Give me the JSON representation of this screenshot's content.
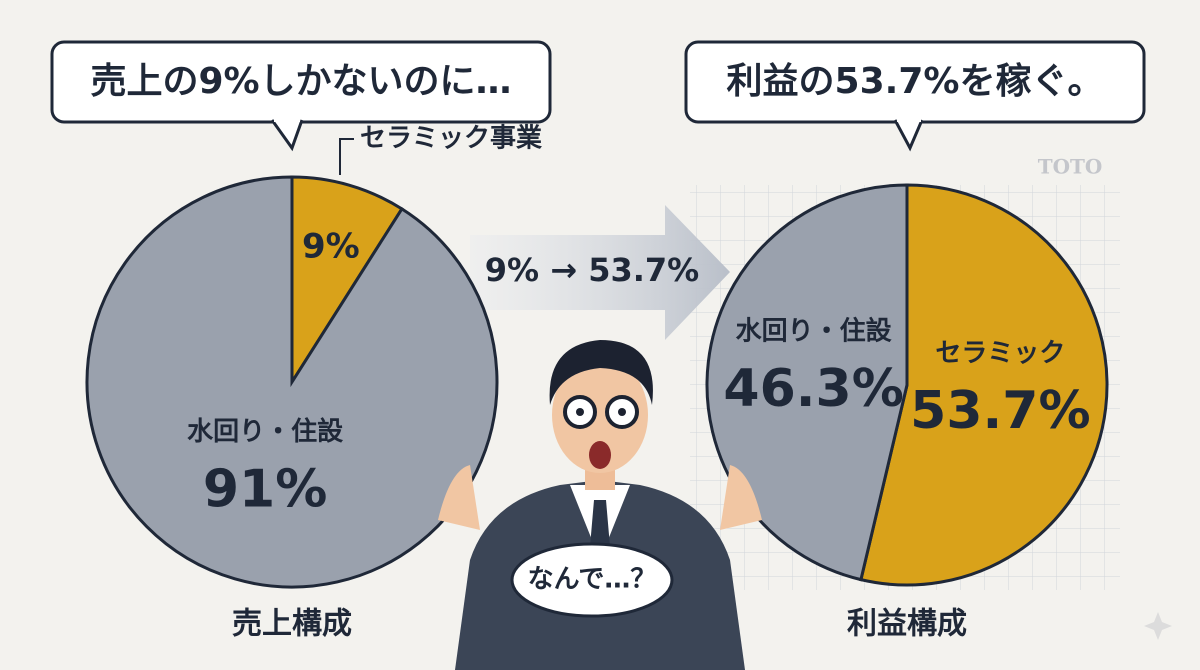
{
  "bubbles": {
    "left": "売上の9%しかないのに…",
    "right": "利益の53.7%を稼ぐ。",
    "center": "なんで…？"
  },
  "arrow_label": "9% → 53.7%",
  "brand": "TOTO",
  "chart_data": [
    {
      "type": "pie",
      "title": "売上構成",
      "categories": [
        "セラミック事業",
        "水回り・住設"
      ],
      "values": [
        9,
        91
      ],
      "value_labels": [
        "9%",
        "91%"
      ],
      "colors": [
        "#d9a21a",
        "#9aa1ad"
      ]
    },
    {
      "type": "pie",
      "title": "利益構成",
      "categories": [
        "セラミック",
        "水回り・住設"
      ],
      "values": [
        53.7,
        46.3
      ],
      "value_labels": [
        "53.7%",
        "46.3%"
      ],
      "colors": [
        "#d9a21a",
        "#9aa1ad"
      ]
    }
  ]
}
